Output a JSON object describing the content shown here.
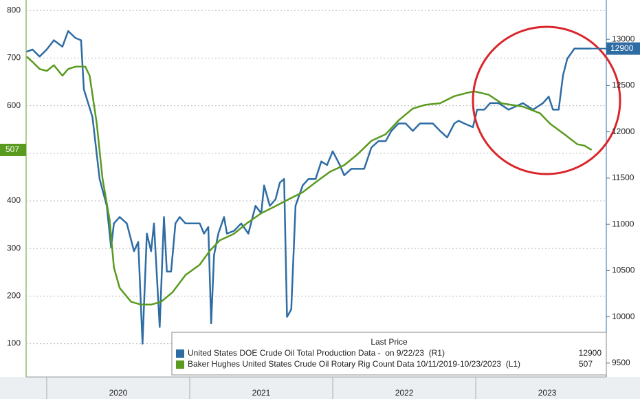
{
  "chart_data": {
    "type": "line",
    "legend_title": "Last Price",
    "xlim": [
      2019.856,
      2023.913
    ],
    "xticks": [
      {
        "value": 2020.5,
        "label": "2020"
      },
      {
        "value": 2021.5,
        "label": "2021"
      },
      {
        "value": 2022.5,
        "label": "2022"
      },
      {
        "value": 2023.5,
        "label": "2023"
      }
    ],
    "ylim": [
      30,
      822
    ],
    "yticks": [
      100,
      200,
      300,
      400,
      500,
      600,
      700,
      800
    ],
    "y2lim": [
      9350,
      13425
    ],
    "y2ticks": [
      9500,
      10000,
      10500,
      11000,
      11500,
      12000,
      12500,
      13000
    ],
    "grid": true,
    "series": [
      {
        "name": "United States DOE Crude Oil Total Production Data -  on 9/22/23  (R1)",
        "color": "#2e6ca4",
        "axis": "y2",
        "x": [
          2019.86,
          2019.9,
          2019.95,
          2020.0,
          2020.05,
          2020.11,
          2020.15,
          2020.2,
          2020.24,
          2020.26,
          2020.32,
          2020.37,
          2020.42,
          2020.45,
          2020.47,
          2020.51,
          2020.56,
          2020.61,
          2020.64,
          2020.67,
          2020.7,
          2020.73,
          2020.75,
          2020.79,
          2020.82,
          2020.84,
          2020.87,
          2020.9,
          2020.93,
          2020.97,
          2021.07,
          2021.1,
          2021.13,
          2021.15,
          2021.17,
          2021.2,
          2021.24,
          2021.26,
          2021.31,
          2021.36,
          2021.41,
          2021.46,
          2021.5,
          2021.52,
          2021.56,
          2021.6,
          2021.63,
          2021.66,
          2021.68,
          2021.71,
          2021.74,
          2021.79,
          2021.83,
          2021.88,
          2021.92,
          2021.96,
          2022.0,
          2022.05,
          2022.08,
          2022.13,
          2022.22,
          2022.27,
          2022.32,
          2022.37,
          2022.41,
          2022.46,
          2022.51,
          2022.56,
          2022.61,
          2022.65,
          2022.7,
          2022.75,
          2022.8,
          2022.85,
          2022.88,
          2022.92,
          2022.98,
          2023.01,
          2023.06,
          2023.1,
          2023.16,
          2023.23,
          2023.33,
          2023.4,
          2023.47,
          2023.51,
          2023.54,
          2023.58,
          2023.61,
          2023.64,
          2023.69,
          2023.81
        ],
        "values": [
          12866,
          12890,
          12814,
          12890,
          12990,
          12920,
          13090,
          13015,
          12990,
          12460,
          12160,
          11490,
          11200,
          10750,
          11010,
          11080,
          11010,
          10710,
          10810,
          9710,
          10900,
          10710,
          11010,
          9890,
          11080,
          10490,
          10490,
          11010,
          11080,
          11010,
          11010,
          10900,
          10970,
          9930,
          10670,
          10900,
          11080,
          10900,
          10930,
          11010,
          10900,
          11200,
          11120,
          11420,
          11200,
          11270,
          11450,
          11490,
          10000,
          10080,
          11200,
          11420,
          11490,
          11490,
          11680,
          11640,
          11790,
          11640,
          11530,
          11600,
          11600,
          11830,
          11900,
          11900,
          12010,
          12090,
          12090,
          12010,
          12090,
          12090,
          12090,
          12010,
          11940,
          12090,
          12120,
          12090,
          12050,
          12240,
          12240,
          12310,
          12310,
          12240,
          12310,
          12240,
          12310,
          12380,
          12240,
          12240,
          12610,
          12790,
          12900,
          12900
        ]
      },
      {
        "name": "Baker Hughes United States Crude Oil Rotary Rig Count Data 10/11/2019-10/23/2023  (L1)",
        "color": "#5a9a1e",
        "x": [
          2019.86,
          2019.9,
          2019.95,
          2020.0,
          2020.05,
          2020.11,
          2020.15,
          2020.2,
          2020.27,
          2020.3,
          2020.35,
          2020.39,
          2020.44,
          2020.47,
          2020.51,
          2020.59,
          2020.66,
          2020.73,
          2020.8,
          2020.88,
          2020.97,
          2021.07,
          2021.14,
          2021.21,
          2021.31,
          2021.4,
          2021.5,
          2021.6,
          2021.69,
          2021.79,
          2021.88,
          2021.98,
          2022.08,
          2022.17,
          2022.27,
          2022.37,
          2022.46,
          2022.56,
          2022.65,
          2022.75,
          2022.85,
          2022.94,
          2022.99,
          2023.09,
          2023.18,
          2023.33,
          2023.45,
          2023.52,
          2023.62,
          2023.71,
          2023.76,
          2023.81
        ],
        "values": [
          703,
          692,
          677,
          673,
          685,
          663,
          677,
          682,
          682,
          663,
          562,
          447,
          360,
          260,
          217,
          188,
          182,
          182,
          188,
          208,
          244,
          266,
          295,
          317,
          331,
          353,
          374,
          389,
          403,
          418,
          439,
          461,
          475,
          497,
          526,
          540,
          569,
          594,
          602,
          605,
          620,
          627,
          630,
          623,
          605,
          598,
          584,
          562,
          540,
          519,
          516,
          507
        ]
      }
    ]
  }
}
